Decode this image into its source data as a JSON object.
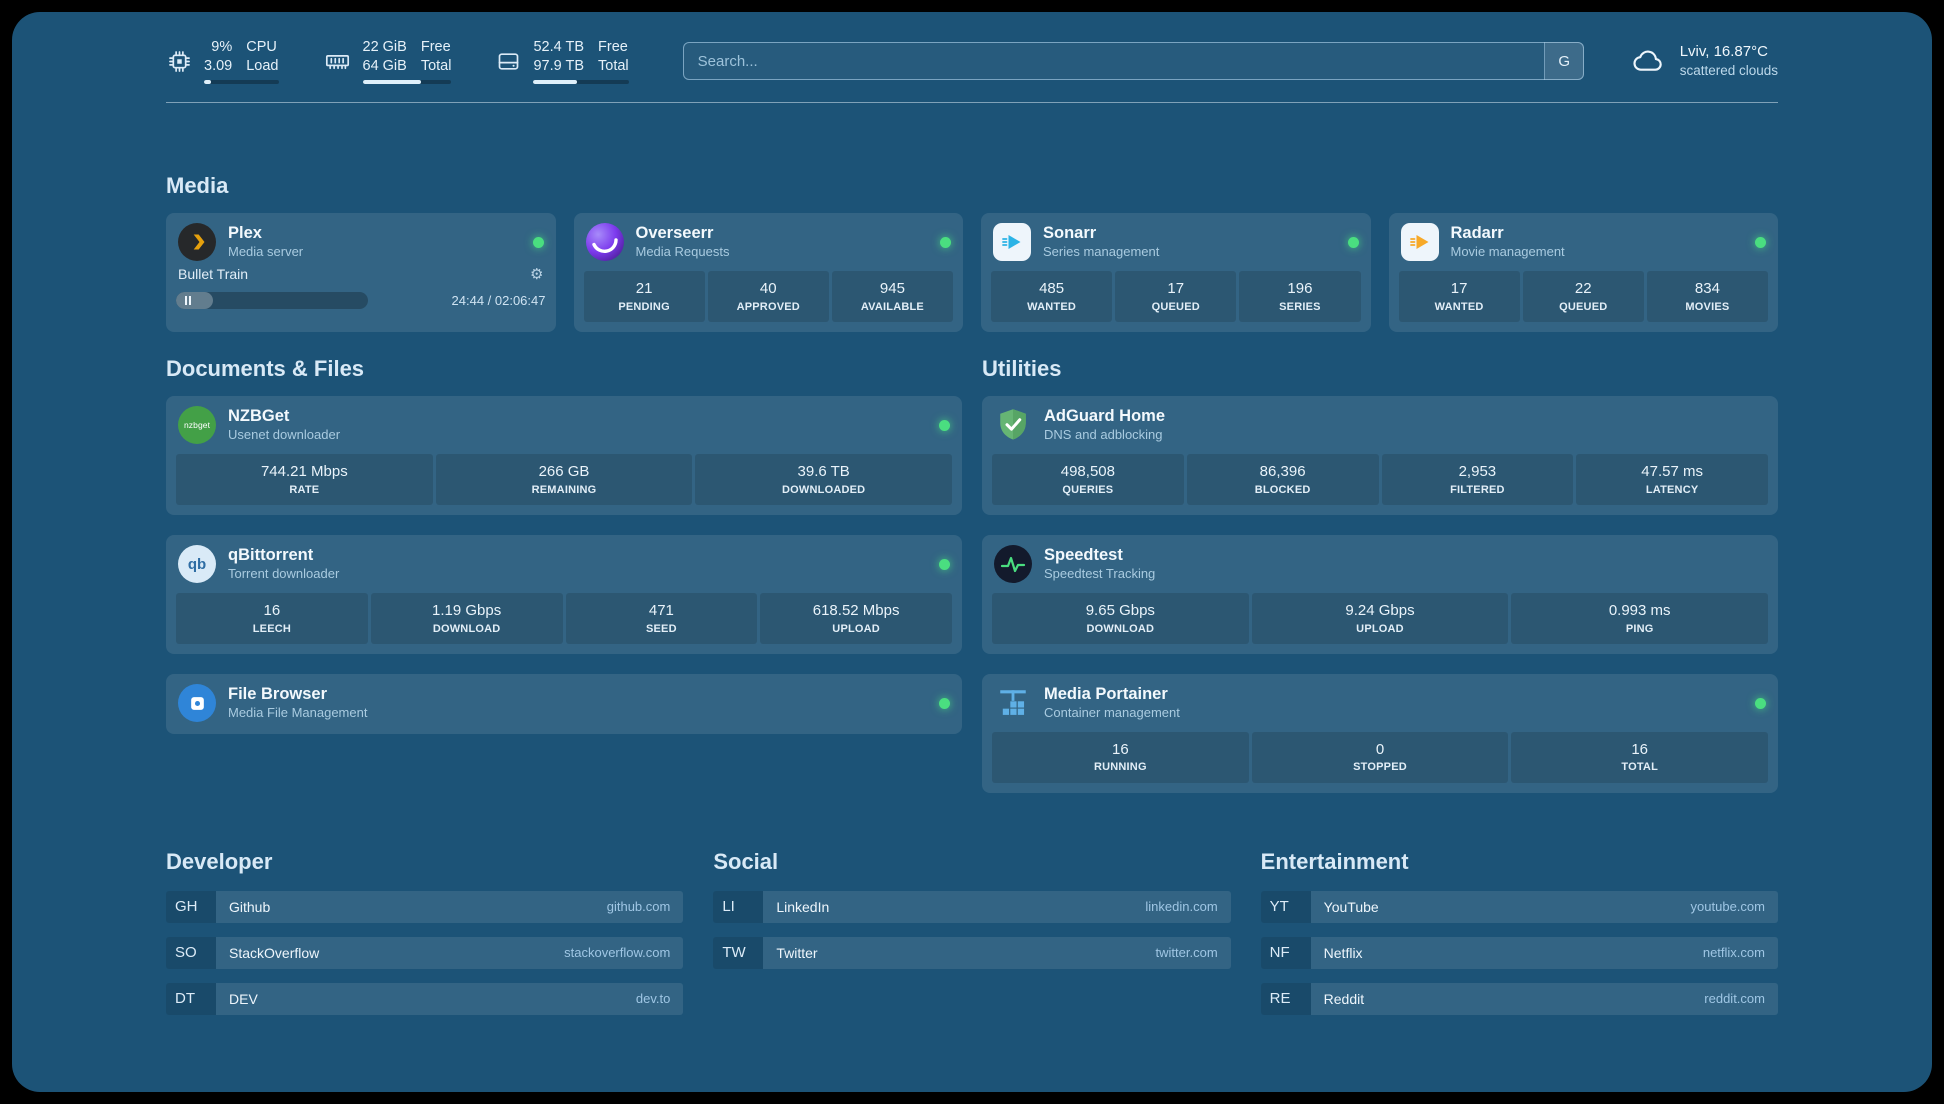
{
  "colors": {
    "background": "#1c5377",
    "status_online": "#4ade80",
    "accent_green_wave": "#4ade80",
    "plex_gold": "#e5a00d"
  },
  "topbar": {
    "cpu": {
      "values": [
        "9%",
        "3.09"
      ],
      "labels": [
        "CPU",
        "Load"
      ],
      "percent": 9
    },
    "memory": {
      "values": [
        "22 GiB",
        "64 GiB"
      ],
      "labels": [
        "Free",
        "Total"
      ],
      "percent": 66
    },
    "disk": {
      "values": [
        "52.4 TB",
        "97.9 TB"
      ],
      "labels": [
        "Free",
        "Total"
      ],
      "percent": 46
    },
    "search": {
      "placeholder": "Search...",
      "provider_label": "G"
    },
    "weather": {
      "location": "Lviv, 16.87°C",
      "condition": "scattered clouds"
    }
  },
  "sections": {
    "media": {
      "title": "Media",
      "services": [
        {
          "name": "Plex",
          "desc": "Media server",
          "online": true,
          "now_playing": {
            "title": "Bullet Train",
            "time": "24:44 / 02:06:47",
            "progress_percent": 19
          }
        },
        {
          "name": "Overseerr",
          "desc": "Media Requests",
          "online": true,
          "stats": [
            {
              "value": "21",
              "label": "PENDING"
            },
            {
              "value": "40",
              "label": "APPROVED"
            },
            {
              "value": "945",
              "label": "AVAILABLE"
            }
          ]
        },
        {
          "name": "Sonarr",
          "desc": "Series management",
          "online": true,
          "stats": [
            {
              "value": "485",
              "label": "WANTED"
            },
            {
              "value": "17",
              "label": "QUEUED"
            },
            {
              "value": "196",
              "label": "SERIES"
            }
          ]
        },
        {
          "name": "Radarr",
          "desc": "Movie management",
          "online": true,
          "stats": [
            {
              "value": "17",
              "label": "WANTED"
            },
            {
              "value": "22",
              "label": "QUEUED"
            },
            {
              "value": "834",
              "label": "MOVIES"
            }
          ]
        }
      ]
    },
    "documents": {
      "title": "Documents & Files",
      "services": [
        {
          "name": "NZBGet",
          "desc": "Usenet downloader",
          "online": true,
          "stats": [
            {
              "value": "744.21 Mbps",
              "label": "RATE"
            },
            {
              "value": "266 GB",
              "label": "REMAINING"
            },
            {
              "value": "39.6 TB",
              "label": "DOWNLOADED"
            }
          ]
        },
        {
          "name": "qBittorrent",
          "desc": "Torrent downloader",
          "online": true,
          "stats": [
            {
              "value": "16",
              "label": "LEECH"
            },
            {
              "value": "1.19 Gbps",
              "label": "DOWNLOAD"
            },
            {
              "value": "471",
              "label": "SEED"
            },
            {
              "value": "618.52 Mbps",
              "label": "UPLOAD"
            }
          ]
        },
        {
          "name": "File Browser",
          "desc": "Media File Management",
          "online": true
        }
      ]
    },
    "utilities": {
      "title": "Utilities",
      "services": [
        {
          "name": "AdGuard Home",
          "desc": "DNS and adblocking",
          "stats": [
            {
              "value": "498,508",
              "label": "QUERIES"
            },
            {
              "value": "86,396",
              "label": "BLOCKED"
            },
            {
              "value": "2,953",
              "label": "FILTERED"
            },
            {
              "value": "47.57 ms",
              "label": "LATENCY"
            }
          ]
        },
        {
          "name": "Speedtest",
          "desc": "Speedtest Tracking",
          "stats": [
            {
              "value": "9.65 Gbps",
              "label": "DOWNLOAD"
            },
            {
              "value": "9.24 Gbps",
              "label": "UPLOAD"
            },
            {
              "value": "0.993 ms",
              "label": "PING"
            }
          ]
        },
        {
          "name": "Media Portainer",
          "desc": "Container management",
          "online": true,
          "stats": [
            {
              "value": "16",
              "label": "RUNNING"
            },
            {
              "value": "0",
              "label": "STOPPED"
            },
            {
              "value": "16",
              "label": "TOTAL"
            }
          ]
        }
      ]
    }
  },
  "bookmarks": [
    {
      "title": "Developer",
      "items": [
        {
          "abbr": "GH",
          "name": "Github",
          "url": "github.com"
        },
        {
          "abbr": "SO",
          "name": "StackOverflow",
          "url": "stackoverflow.com"
        },
        {
          "abbr": "DT",
          "name": "DEV",
          "url": "dev.to"
        }
      ]
    },
    {
      "title": "Social",
      "items": [
        {
          "abbr": "LI",
          "name": "LinkedIn",
          "url": "linkedin.com"
        },
        {
          "abbr": "TW",
          "name": "Twitter",
          "url": "twitter.com"
        }
      ]
    },
    {
      "title": "Entertainment",
      "items": [
        {
          "abbr": "YT",
          "name": "YouTube",
          "url": "youtube.com"
        },
        {
          "abbr": "NF",
          "name": "Netflix",
          "url": "netflix.com"
        },
        {
          "abbr": "RE",
          "name": "Reddit",
          "url": "reddit.com"
        }
      ]
    }
  ],
  "icons": {
    "nzbget_text": "nzbget",
    "qbittorrent_text": "qb"
  }
}
